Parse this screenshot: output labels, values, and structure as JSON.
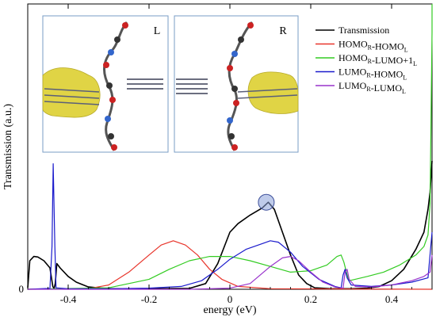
{
  "chart_data": {
    "type": "line",
    "xlabel": "energy (eV)",
    "ylabel": "Transmission (a.u.)",
    "xlim": [
      -0.5,
      0.5
    ],
    "ylim": [
      0,
      1
    ],
    "x_ticks": [
      -0.4,
      -0.2,
      0,
      0.2,
      0.4
    ],
    "x_tick_labels": [
      "-0.4",
      "-0.2",
      "0",
      "0.2",
      "0.4"
    ],
    "y_ticks": [
      0
    ],
    "y_tick_labels": [
      "0"
    ],
    "legend_position": "top-right",
    "legend": [
      {
        "parts": [
          {
            "t": "Transmission"
          }
        ],
        "color": "#000000"
      },
      {
        "parts": [
          {
            "t": "HOMO"
          },
          {
            "t": "R",
            "sub": true
          },
          {
            "t": "-HOMO"
          },
          {
            "t": "L",
            "sub": true
          }
        ],
        "color": "#e8342a"
      },
      {
        "parts": [
          {
            "t": "HOMO"
          },
          {
            "t": "R",
            "sub": true
          },
          {
            "t": "-LUMO+1"
          },
          {
            "t": "L",
            "sub": true
          }
        ],
        "color": "#33cc22"
      },
      {
        "parts": [
          {
            "t": "LUMO"
          },
          {
            "t": "R",
            "sub": true
          },
          {
            "t": "-HOMO"
          },
          {
            "t": "L",
            "sub": true
          }
        ],
        "color": "#1a1acc"
      },
      {
        "parts": [
          {
            "t": "LUMO"
          },
          {
            "t": "R",
            "sub": true
          },
          {
            "t": "-LUMO"
          },
          {
            "t": "L",
            "sub": true
          }
        ],
        "color": "#9933cc"
      }
    ],
    "insets": [
      {
        "label": "L"
      },
      {
        "label": "R"
      }
    ],
    "highlight_point": {
      "x": 0.09,
      "y": 0.305
    },
    "series": [
      {
        "color": "#000000",
        "width": 1.6,
        "points": [
          [
            -0.5,
            0.005
          ],
          [
            -0.495,
            0.1
          ],
          [
            -0.485,
            0.115
          ],
          [
            -0.475,
            0.113
          ],
          [
            -0.46,
            0.1
          ],
          [
            -0.445,
            0.075
          ],
          [
            -0.438,
            0.01
          ],
          [
            -0.435,
            0.002
          ],
          [
            -0.432,
            0.02
          ],
          [
            -0.428,
            0.09
          ],
          [
            -0.42,
            0.075
          ],
          [
            -0.4,
            0.045
          ],
          [
            -0.38,
            0.025
          ],
          [
            -0.35,
            0.008
          ],
          [
            -0.3,
            0.002
          ],
          [
            -0.2,
            0.002
          ],
          [
            -0.1,
            0.003
          ],
          [
            -0.06,
            0.02
          ],
          [
            -0.03,
            0.09
          ],
          [
            0.0,
            0.2
          ],
          [
            0.02,
            0.23
          ],
          [
            0.05,
            0.26
          ],
          [
            0.08,
            0.285
          ],
          [
            0.095,
            0.305
          ],
          [
            0.11,
            0.28
          ],
          [
            0.13,
            0.2
          ],
          [
            0.15,
            0.12
          ],
          [
            0.17,
            0.05
          ],
          [
            0.19,
            0.02
          ],
          [
            0.21,
            0.005
          ],
          [
            0.25,
            0.002
          ],
          [
            0.3,
            0.002
          ],
          [
            0.34,
            0.004
          ],
          [
            0.37,
            0.01
          ],
          [
            0.4,
            0.03
          ],
          [
            0.43,
            0.07
          ],
          [
            0.46,
            0.14
          ],
          [
            0.48,
            0.2
          ],
          [
            0.49,
            0.28
          ],
          [
            0.495,
            0.34
          ],
          [
            0.5,
            0.45
          ]
        ]
      },
      {
        "color": "#e8342a",
        "width": 1.2,
        "points": [
          [
            -0.5,
            0.0
          ],
          [
            -0.35,
            0.002
          ],
          [
            -0.3,
            0.015
          ],
          [
            -0.25,
            0.06
          ],
          [
            -0.2,
            0.12
          ],
          [
            -0.17,
            0.155
          ],
          [
            -0.14,
            0.17
          ],
          [
            -0.11,
            0.155
          ],
          [
            -0.08,
            0.12
          ],
          [
            -0.05,
            0.07
          ],
          [
            -0.02,
            0.035
          ],
          [
            0.02,
            0.01
          ],
          [
            0.1,
            0.002
          ],
          [
            0.5,
            0.0
          ]
        ]
      },
      {
        "color": "#33cc22",
        "width": 1.2,
        "points": [
          [
            -0.5,
            0.0
          ],
          [
            -0.3,
            0.005
          ],
          [
            -0.2,
            0.035
          ],
          [
            -0.15,
            0.07
          ],
          [
            -0.1,
            0.1
          ],
          [
            -0.05,
            0.115
          ],
          [
            0.0,
            0.115
          ],
          [
            0.05,
            0.1
          ],
          [
            0.1,
            0.08
          ],
          [
            0.15,
            0.06
          ],
          [
            0.2,
            0.065
          ],
          [
            0.24,
            0.085
          ],
          [
            0.265,
            0.115
          ],
          [
            0.275,
            0.12
          ],
          [
            0.282,
            0.095
          ],
          [
            0.29,
            0.05
          ],
          [
            0.295,
            0.03
          ],
          [
            0.31,
            0.035
          ],
          [
            0.34,
            0.045
          ],
          [
            0.38,
            0.06
          ],
          [
            0.42,
            0.085
          ],
          [
            0.46,
            0.12
          ],
          [
            0.48,
            0.15
          ],
          [
            0.49,
            0.19
          ],
          [
            0.495,
            0.3
          ],
          [
            0.5,
            0.9
          ],
          [
            0.5,
            1.0
          ]
        ]
      },
      {
        "color": "#1a1acc",
        "width": 1.2,
        "points": [
          [
            -0.5,
            0.0
          ],
          [
            -0.445,
            0.003
          ],
          [
            -0.44,
            0.15
          ],
          [
            -0.437,
            0.44
          ],
          [
            -0.433,
            0.15
          ],
          [
            -0.43,
            0.005
          ],
          [
            -0.4,
            0.002
          ],
          [
            -0.3,
            0.002
          ],
          [
            -0.2,
            0.004
          ],
          [
            -0.12,
            0.01
          ],
          [
            -0.07,
            0.03
          ],
          [
            -0.03,
            0.07
          ],
          [
            0.0,
            0.105
          ],
          [
            0.04,
            0.14
          ],
          [
            0.08,
            0.16
          ],
          [
            0.1,
            0.17
          ],
          [
            0.12,
            0.165
          ],
          [
            0.15,
            0.13
          ],
          [
            0.18,
            0.08
          ],
          [
            0.22,
            0.035
          ],
          [
            0.26,
            0.01
          ],
          [
            0.275,
            0.005
          ],
          [
            0.28,
            0.05
          ],
          [
            0.285,
            0.07
          ],
          [
            0.29,
            0.04
          ],
          [
            0.3,
            0.015
          ],
          [
            0.35,
            0.01
          ],
          [
            0.4,
            0.015
          ],
          [
            0.45,
            0.025
          ],
          [
            0.49,
            0.04
          ],
          [
            0.5,
            0.2
          ]
        ]
      },
      {
        "color": "#9933cc",
        "width": 1.2,
        "points": [
          [
            -0.5,
            0.0
          ],
          [
            -0.3,
            0.0
          ],
          [
            -0.1,
            0.0
          ],
          [
            0.0,
            0.004
          ],
          [
            0.05,
            0.02
          ],
          [
            0.1,
            0.08
          ],
          [
            0.13,
            0.11
          ],
          [
            0.15,
            0.115
          ],
          [
            0.17,
            0.1
          ],
          [
            0.2,
            0.06
          ],
          [
            0.23,
            0.025
          ],
          [
            0.26,
            0.008
          ],
          [
            0.28,
            0.004
          ],
          [
            0.285,
            0.06
          ],
          [
            0.29,
            0.07
          ],
          [
            0.295,
            0.035
          ],
          [
            0.31,
            0.01
          ],
          [
            0.35,
            0.008
          ],
          [
            0.4,
            0.015
          ],
          [
            0.45,
            0.03
          ],
          [
            0.48,
            0.045
          ],
          [
            0.495,
            0.06
          ],
          [
            0.5,
            0.12
          ]
        ]
      }
    ]
  }
}
